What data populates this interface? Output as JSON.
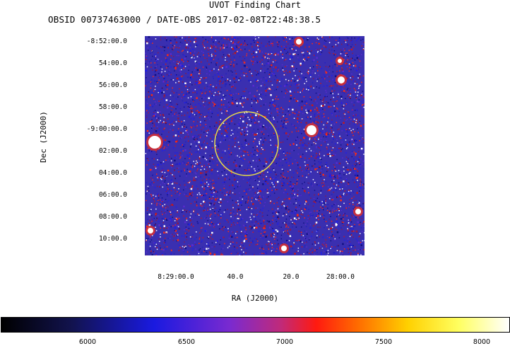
{
  "title": "UVOT Finding Chart",
  "subtitle": "OBSID 00737463000 / DATE-OBS 2017-02-08T22:48:38.5",
  "axes": {
    "dec_label": "Dec (J2000)",
    "ra_label": "RA (J2000)",
    "dec_ticks": [
      "-8:52:00.0",
      "54:00.0",
      "56:00.0",
      "58:00.0",
      "-9:00:00.0",
      "02:00.0",
      "04:00.0",
      "06:00.0",
      "08:00.0",
      "10:00.0"
    ],
    "ra_ticks": [
      "8:29:00.0",
      "40.0",
      "20.0",
      "28:00.0"
    ]
  },
  "colorbar": {
    "ticks": [
      "6000",
      "6500",
      "7000",
      "7500",
      "8000"
    ]
  },
  "colors": {
    "background": "#3a2fb0",
    "circle": "#e6d94a"
  }
}
